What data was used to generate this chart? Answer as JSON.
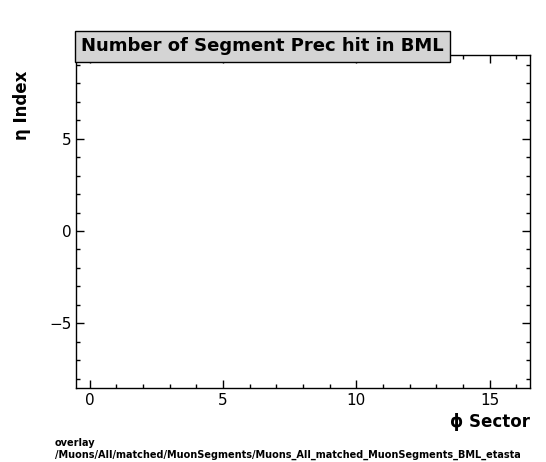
{
  "title": "Number of Segment Prec hit in BML",
  "xlabel": "ϕ Sector",
  "ylabel": "η Index",
  "xlim": [
    -0.5,
    16.5
  ],
  "ylim": [
    -8.5,
    9.5
  ],
  "xticks": [
    0,
    5,
    10,
    15
  ],
  "yticks": [
    -5,
    0,
    5
  ],
  "background_color": "#ffffff",
  "plot_bg_color": "#ffffff",
  "title_fontsize": 13,
  "axis_fontsize": 12,
  "tick_fontsize": 11,
  "footer_line1": "overlay",
  "footer_line2": "/Muons/All/matched/MuonSegments/Muons_All_matched_MuonSegments_BML_etasta",
  "footer_fontsize": 7
}
